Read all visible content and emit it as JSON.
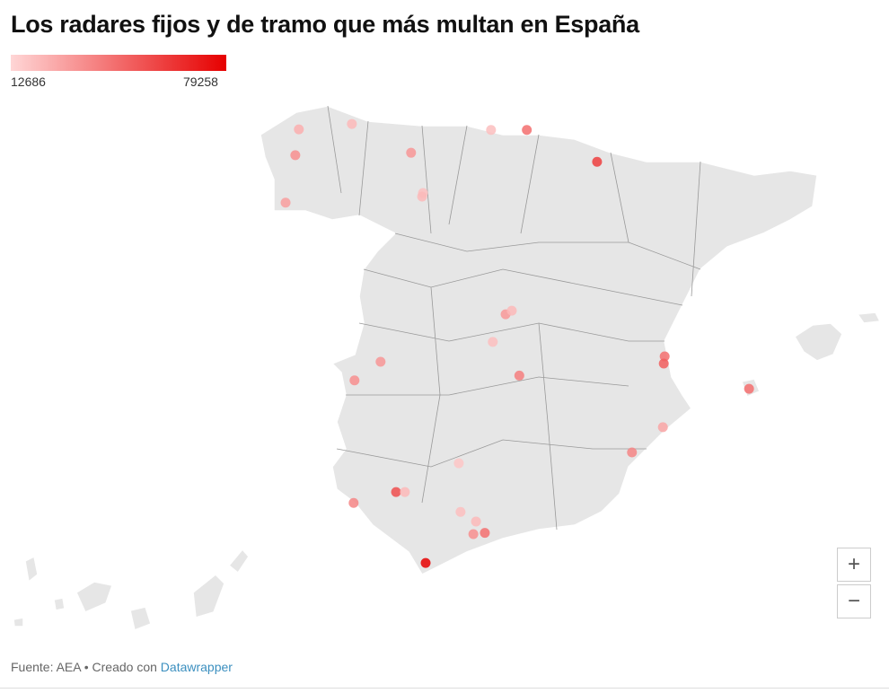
{
  "title": "Los radares fijos y de tramo que más multan en España",
  "legend": {
    "min": 12686,
    "max": 79258,
    "color_min": "#ffd6d6",
    "color_max": "#e60000"
  },
  "markers": [
    {
      "lon": -8.43,
      "lat": 43.41,
      "value": 25000
    },
    {
      "lon": -7.23,
      "lat": 43.5,
      "value": 22000
    },
    {
      "lon": -8.51,
      "lat": 42.98,
      "value": 35000
    },
    {
      "lon": -8.73,
      "lat": 42.19,
      "value": 30000
    },
    {
      "lon": -5.89,
      "lat": 43.02,
      "value": 33000
    },
    {
      "lon": -5.62,
      "lat": 42.35,
      "value": 20000
    },
    {
      "lon": -5.64,
      "lat": 42.29,
      "value": 22000
    },
    {
      "lon": -4.08,
      "lat": 43.4,
      "value": 20000
    },
    {
      "lon": -3.27,
      "lat": 43.4,
      "value": 45000
    },
    {
      "lon": -1.68,
      "lat": 42.87,
      "value": 60000
    },
    {
      "lon": -3.75,
      "lat": 40.33,
      "value": 32000
    },
    {
      "lon": -3.61,
      "lat": 40.39,
      "value": 22000
    },
    {
      "lon": -4.04,
      "lat": 39.87,
      "value": 20000
    },
    {
      "lon": -6.58,
      "lat": 39.54,
      "value": 33000
    },
    {
      "lon": -7.17,
      "lat": 39.23,
      "value": 35000
    },
    {
      "lon": -3.44,
      "lat": 39.31,
      "value": 40000
    },
    {
      "lon": -0.15,
      "lat": 39.63,
      "value": 45000
    },
    {
      "lon": -0.17,
      "lat": 39.51,
      "value": 50000
    },
    {
      "lon": 1.76,
      "lat": 39.09,
      "value": 45000
    },
    {
      "lon": -0.19,
      "lat": 38.45,
      "value": 28000
    },
    {
      "lon": -0.89,
      "lat": 38.03,
      "value": 38000
    },
    {
      "lon": -4.81,
      "lat": 37.85,
      "value": 18000
    },
    {
      "lon": -6.23,
      "lat": 37.37,
      "value": 55000
    },
    {
      "lon": -6.03,
      "lat": 37.37,
      "value": 22000
    },
    {
      "lon": -7.19,
      "lat": 37.19,
      "value": 38000
    },
    {
      "lon": -4.77,
      "lat": 37.04,
      "value": 20000
    },
    {
      "lon": -4.42,
      "lat": 36.88,
      "value": 22000
    },
    {
      "lon": -4.48,
      "lat": 36.67,
      "value": 35000
    },
    {
      "lon": -4.22,
      "lat": 36.69,
      "value": 45000
    },
    {
      "lon": -5.56,
      "lat": 36.19,
      "value": 79258
    }
  ],
  "zoom": {
    "in": "+",
    "out": "−"
  },
  "footer": {
    "text": "Fuente: AEA • Creado con",
    "link": "Datawrapper"
  }
}
